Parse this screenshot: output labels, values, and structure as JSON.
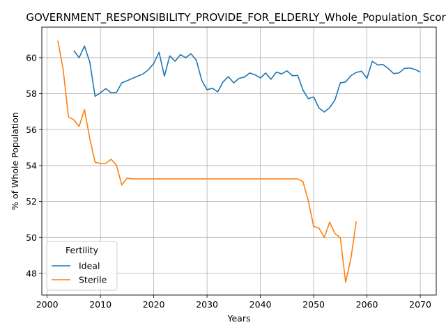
{
  "chart_data": {
    "type": "line",
    "title": "GOVERNMENT_RESPONSIBILITY_PROVIDE_FOR_ELDERLY_Whole_Population_Score",
    "xlabel": "Years",
    "ylabel": "% of Whole Population",
    "xlim": [
      1999,
      2073
    ],
    "ylim": [
      46.8,
      61.7
    ],
    "xticks": [
      2000,
      2010,
      2020,
      2030,
      2040,
      2050,
      2060,
      2070
    ],
    "yticks": [
      48,
      50,
      52,
      54,
      56,
      58,
      60
    ],
    "grid": true,
    "legend": {
      "title": "Fertility",
      "placement": "lower-left"
    },
    "series": [
      {
        "name": "Ideal",
        "color": "#1f77b4",
        "x": [
          2005,
          2006,
          2007,
          2008,
          2009,
          2010,
          2011,
          2012,
          2013,
          2014,
          2015,
          2016,
          2017,
          2018,
          2019,
          2020,
          2021,
          2022,
          2023,
          2024,
          2025,
          2026,
          2027,
          2028,
          2029,
          2030,
          2031,
          2032,
          2033,
          2034,
          2035,
          2036,
          2037,
          2038,
          2039,
          2040,
          2041,
          2042,
          2043,
          2044,
          2045,
          2046,
          2047,
          2048,
          2049,
          2050,
          2051,
          2052,
          2053,
          2054,
          2055,
          2056,
          2057,
          2058,
          2059,
          2060,
          2061,
          2062,
          2063,
          2064,
          2065,
          2066,
          2067,
          2068,
          2069,
          2070
        ],
        "y": [
          60.4,
          60.0,
          60.65,
          59.75,
          57.85,
          58.05,
          58.28,
          58.05,
          58.07,
          58.6,
          58.72,
          58.85,
          58.97,
          59.1,
          59.33,
          59.68,
          60.3,
          58.97,
          60.1,
          59.8,
          60.17,
          60.0,
          60.22,
          59.85,
          58.75,
          58.22,
          58.3,
          58.1,
          58.65,
          58.95,
          58.6,
          58.85,
          58.92,
          59.15,
          59.05,
          58.87,
          59.15,
          58.8,
          59.2,
          59.1,
          59.27,
          59.0,
          59.02,
          58.2,
          57.72,
          57.82,
          57.2,
          56.98,
          57.22,
          57.65,
          58.6,
          58.65,
          59.0,
          59.18,
          59.25,
          58.85,
          59.8,
          59.6,
          59.62,
          59.4,
          59.12,
          59.15,
          59.4,
          59.43,
          59.35,
          59.2
        ]
      },
      {
        "name": "Sterile",
        "color": "#ff7f0e",
        "x": [
          2002,
          2003,
          2004,
          2005,
          2006,
          2007,
          2008,
          2009,
          2010,
          2011,
          2012,
          2013,
          2014,
          2015,
          2016,
          2017,
          2018,
          2019,
          2020,
          2021,
          2022,
          2023,
          2024,
          2025,
          2026,
          2027,
          2028,
          2029,
          2030,
          2031,
          2032,
          2033,
          2034,
          2035,
          2036,
          2037,
          2038,
          2039,
          2040,
          2041,
          2042,
          2043,
          2044,
          2045,
          2046,
          2047,
          2048,
          2049,
          2050,
          2051,
          2052,
          2053,
          2054,
          2055,
          2056,
          2057,
          2058
        ],
        "y": [
          60.95,
          59.35,
          56.7,
          56.55,
          56.18,
          57.12,
          55.5,
          54.18,
          54.12,
          54.12,
          54.35,
          54.02,
          52.92,
          53.3,
          53.26,
          53.26,
          53.26,
          53.26,
          53.26,
          53.26,
          53.26,
          53.26,
          53.26,
          53.26,
          53.26,
          53.26,
          53.26,
          53.26,
          53.26,
          53.26,
          53.26,
          53.26,
          53.26,
          53.26,
          53.26,
          53.26,
          53.26,
          53.26,
          53.26,
          53.26,
          53.26,
          53.26,
          53.26,
          53.26,
          53.26,
          53.26,
          53.1,
          52.05,
          50.62,
          50.52,
          50.0,
          50.85,
          50.22,
          50.0,
          47.5,
          48.85,
          50.9
        ]
      }
    ]
  }
}
